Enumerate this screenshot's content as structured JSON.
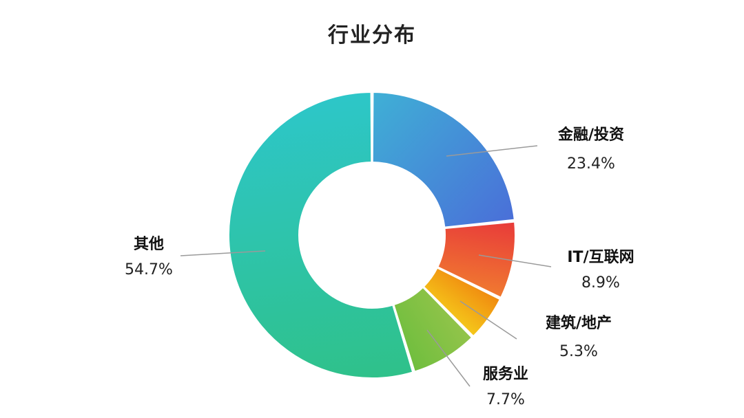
{
  "chart_data": {
    "type": "pie",
    "title": "行业分布",
    "categories": [
      "金融/投资",
      "IT/互联网",
      "建筑/地产",
      "服务业",
      "其他"
    ],
    "values": [
      23.4,
      8.9,
      5.3,
      7.7,
      54.7
    ],
    "value_labels": [
      "23.4%",
      "8.9%",
      "5.3%",
      "7.7%",
      "54.7%"
    ],
    "donut": true,
    "legend": "none",
    "colors": [
      [
        "#3FB0D6",
        "#4A6FD8"
      ],
      [
        "#E83A3A",
        "#F07A30"
      ],
      [
        "#F08A10",
        "#F5C81A"
      ],
      [
        "#93C44A",
        "#6FBE3E"
      ],
      [
        "#2FC18A",
        "#2DC6C8"
      ]
    ]
  }
}
